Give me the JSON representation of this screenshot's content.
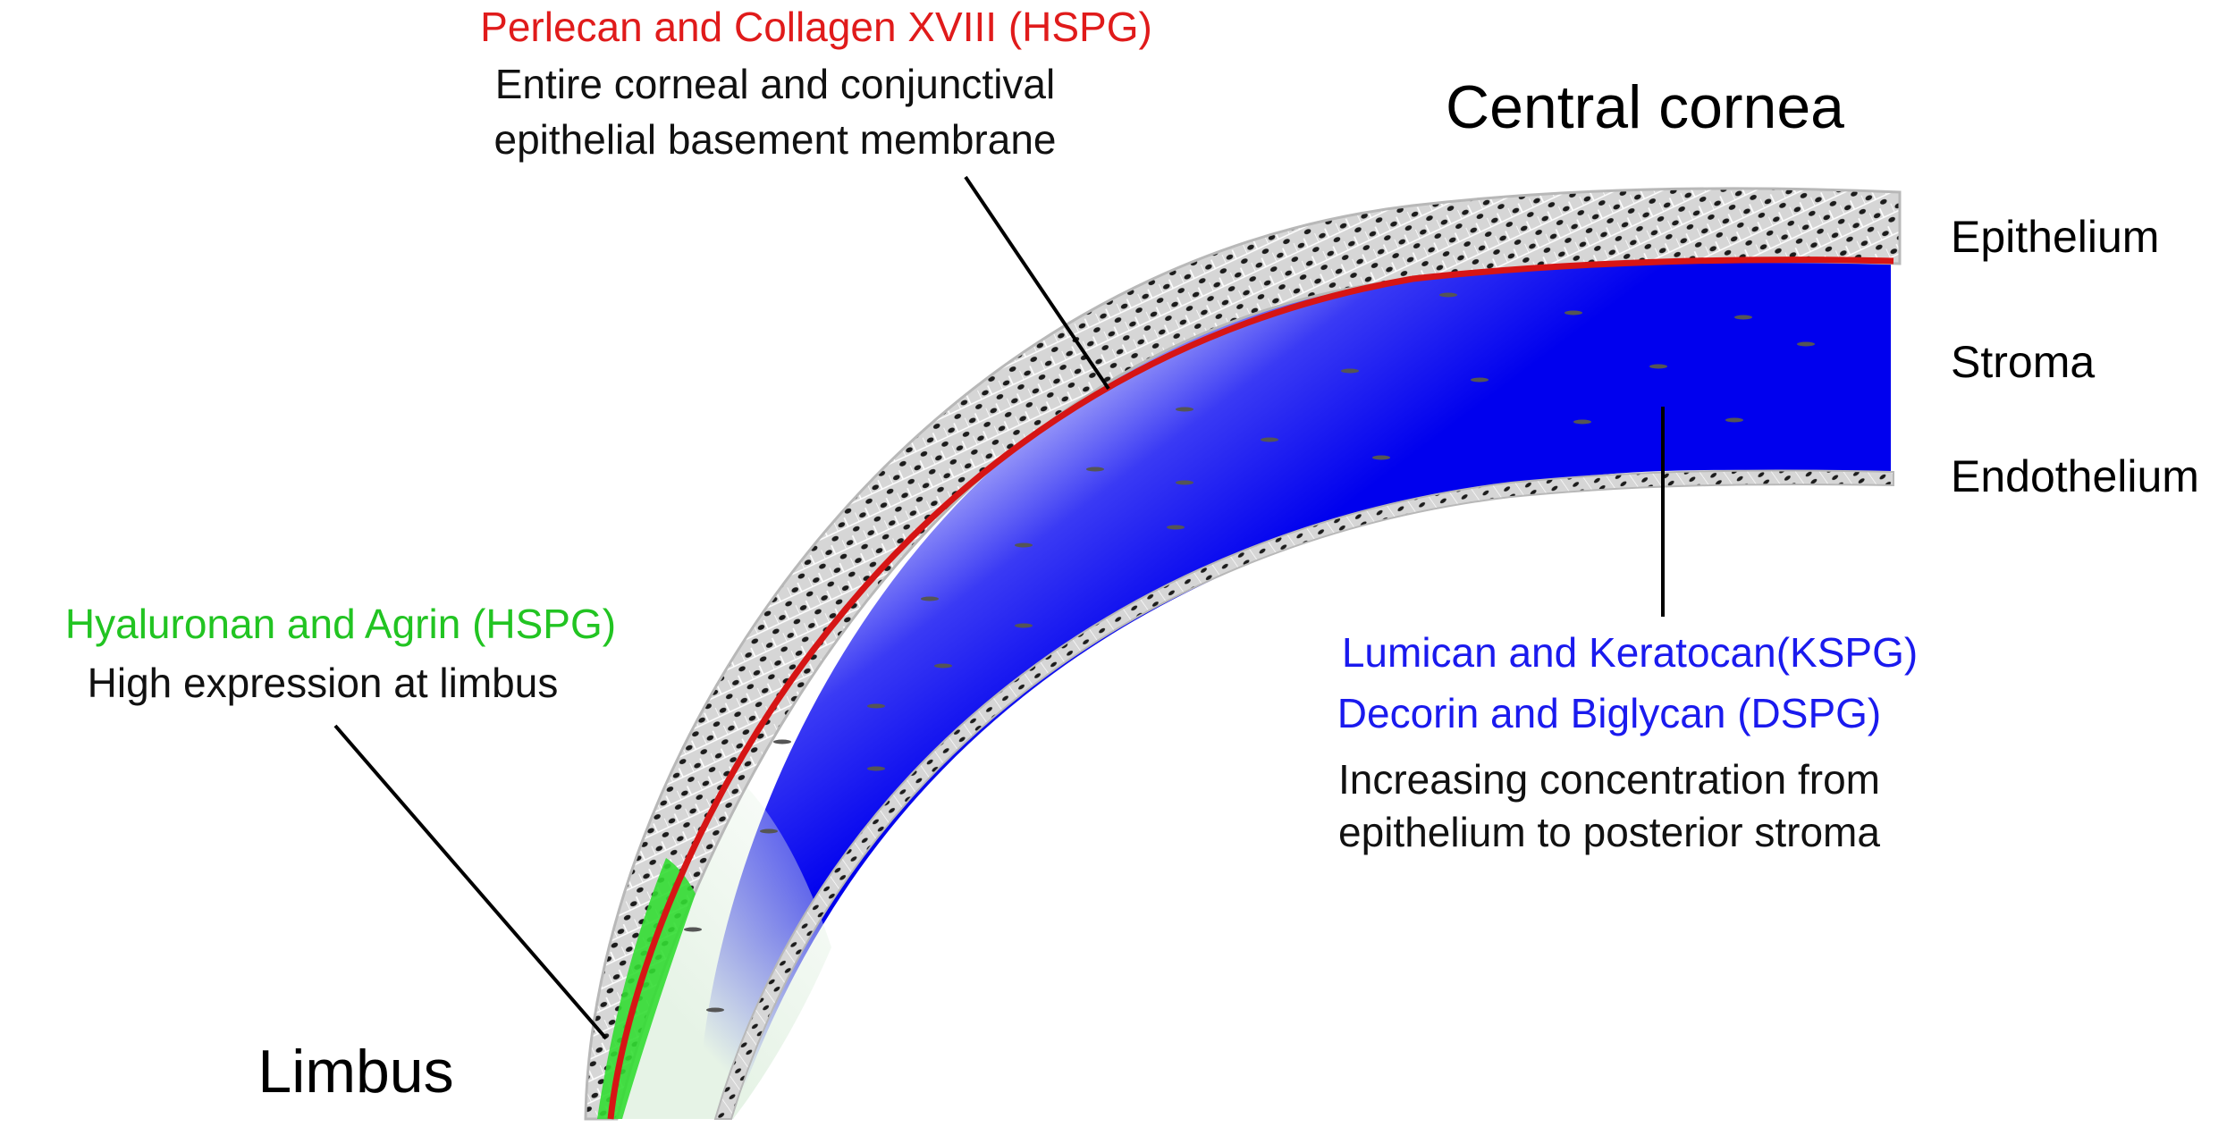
{
  "regions": {
    "central": "Central cornea",
    "limbus": "Limbus"
  },
  "layers": {
    "epithelium": "Epithelium",
    "stroma": "Stroma",
    "endothelium": "Endothelium"
  },
  "annotations": {
    "hspg_red": {
      "title": "Perlecan and Collagen XVIII (HSPG)",
      "line1": "Entire corneal and conjunctival",
      "line2": "epithelial basement membrane",
      "color": "#e01b1b"
    },
    "hspg_green": {
      "title": "Hyaluronan and Agrin (HSPG)",
      "line1": "High expression at limbus",
      "color": "#22c422"
    },
    "kspg_dspg": {
      "title1": "Lumican and Keratocan(KSPG)",
      "title2": "Decorin and Biglycan (DSPG)",
      "line1": "Increasing concentration from",
      "line2": "epithelium to posterior stroma",
      "color": "#1a1aee"
    }
  }
}
